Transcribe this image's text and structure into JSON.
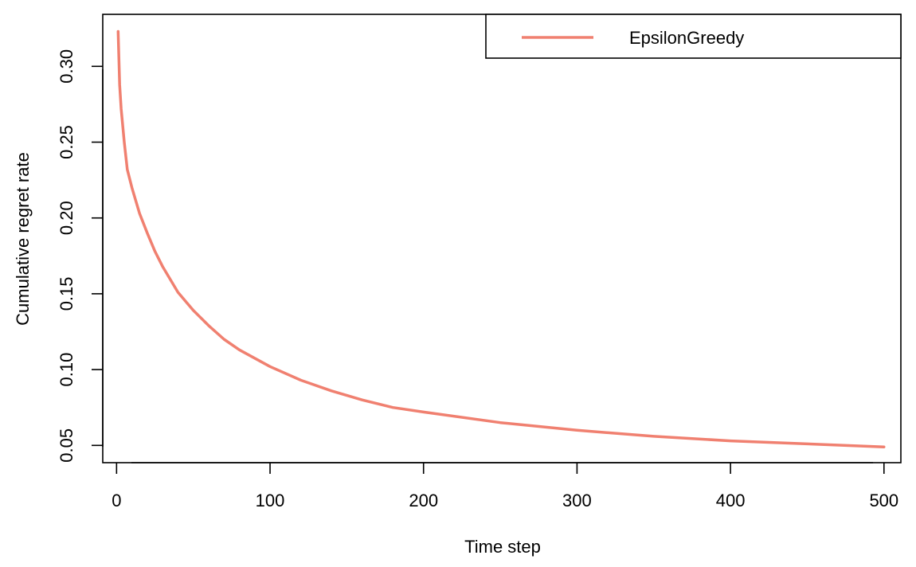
{
  "chart_data": {
    "type": "line",
    "title": "",
    "xlabel": "Time step",
    "ylabel": "Cumulative regret rate",
    "xlim": [
      -9,
      511
    ],
    "ylim": [
      0.0386,
      0.3343
    ],
    "xticks": [
      0,
      100,
      200,
      300,
      400,
      500
    ],
    "yticks": [
      0.05,
      0.1,
      0.15,
      0.2,
      0.25,
      0.3
    ],
    "xtick_labels": [
      "0",
      "100",
      "200",
      "300",
      "400",
      "500"
    ],
    "ytick_labels": [
      "0.05",
      "0.10",
      "0.15",
      "0.20",
      "0.25",
      "0.30"
    ],
    "grid": false,
    "legend_position": "top-right",
    "series": [
      {
        "name": "EpsilonGreedy",
        "color": "#F08070",
        "x": [
          1,
          2,
          3,
          5,
          7,
          10,
          15,
          20,
          25,
          30,
          40,
          50,
          60,
          70,
          80,
          100,
          120,
          140,
          160,
          180,
          200,
          250,
          300,
          350,
          400,
          450,
          500
        ],
        "y": [
          0.323,
          0.288,
          0.272,
          0.25,
          0.232,
          0.22,
          0.203,
          0.19,
          0.178,
          0.168,
          0.151,
          0.139,
          0.129,
          0.12,
          0.113,
          0.102,
          0.093,
          0.086,
          0.08,
          0.075,
          0.072,
          0.065,
          0.06,
          0.056,
          0.053,
          0.051,
          0.049
        ]
      }
    ]
  }
}
